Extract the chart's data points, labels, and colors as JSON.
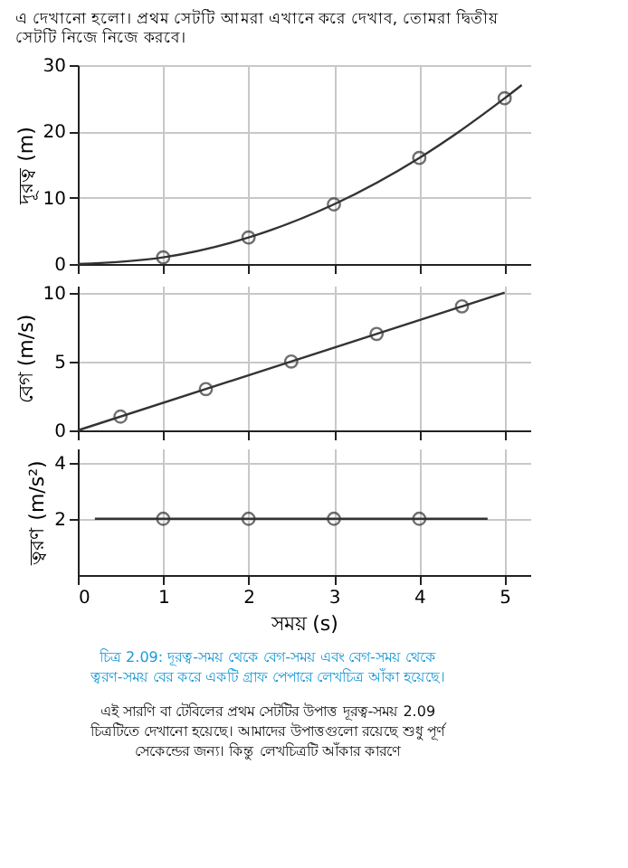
{
  "chart_data": [
    {
      "type": "line",
      "title": "এ দেখানো হলো। প্রথম সেটটি আমরা এখানে করে দেখাব, তোমরা দ্বিতীয় সেটটি নিজে নিজে করবে।",
      "ylabel": "দূরত্ব (m)",
      "xlim": [
        0,
        5.3
      ],
      "ylim": [
        0,
        30
      ],
      "xticks": [
        {
          "value": 0,
          "label": null
        },
        {
          "value": 1,
          "label": null
        },
        {
          "value": 2,
          "label": null
        },
        {
          "value": 3,
          "label": null
        },
        {
          "value": 4,
          "label": null
        },
        {
          "value": 5,
          "label": null
        }
      ],
      "yticks": [
        0,
        10,
        20,
        30
      ],
      "tick_labels": "y",
      "grid": true,
      "series": [
        {
          "color": "#333333",
          "line_style": "solid",
          "x": [
            0,
            1,
            2,
            3,
            4,
            5,
            5.2
          ],
          "values": [
            0,
            1,
            4,
            9,
            16,
            25,
            27
          ]
        },
        {
          "type": "scatter",
          "color": "#333333",
          "marker": "circle",
          "x": [
            1,
            2,
            3,
            4,
            5
          ],
          "values": [
            1,
            4,
            9,
            16,
            25
          ]
        }
      ]
    },
    {
      "type": "line",
      "ylabel": "বেগ (m/s)",
      "xlim": [
        0,
        5.3
      ],
      "ylim": [
        0,
        10.5
      ],
      "xticks": [
        {
          "value": 0,
          "label": null
        },
        {
          "value": 1,
          "label": null
        },
        {
          "value": 2,
          "label": null
        },
        {
          "value": 3,
          "label": null
        },
        {
          "value": 4,
          "label": null
        },
        {
          "value": 5,
          "label": null
        }
      ],
      "yticks": [
        0,
        5,
        10
      ],
      "tick_labels": "y",
      "grid": true,
      "series": [
        {
          "color": "#333333",
          "line_style": "solid",
          "x": [
            0,
            5
          ],
          "values": [
            0,
            10
          ]
        },
        {
          "type": "scatter",
          "color": "#333333",
          "marker": "circle",
          "x": [
            0.5,
            1.5,
            2.5,
            3.5,
            4.5
          ],
          "values": [
            1,
            3,
            5,
            7,
            9
          ]
        }
      ]
    },
    {
      "type": "line",
      "ylabel": "ত্বরণ (m/s²)",
      "xlabel": "সময় (s)",
      "xlim": [
        0,
        5.3
      ],
      "ylim": [
        0,
        4.5
      ],
      "xticks": [
        0,
        1,
        2,
        3,
        4,
        5
      ],
      "yticks": [
        2,
        4
      ],
      "grid": true,
      "series": [
        {
          "color": "#333333",
          "line_style": "solid",
          "x": [
            0.2,
            4.8
          ],
          "values": [
            2,
            2
          ]
        },
        {
          "type": "scatter",
          "color": "#333333",
          "marker": "circle",
          "x": [
            1,
            2,
            3,
            4
          ],
          "values": [
            2,
            2,
            2,
            2
          ]
        }
      ],
      "annotations": [
        "চিত্র 2.09: দূরত্ব-সময় থেকে বেগ-সময় এবং বেগ-সময় থেকে ত্বরণ-সময় বের করে একটি গ্রাফ পেপারে লেখচিত্র আঁকা হয়েছে।",
        "এই সারণি বা টেবিলের প্রথম সেটটির উপাত্ত দূরত্ব-সময় 2.09 চিত্রটিতে দেখানো হয়েছে। আমাদের উপাত্তগুলো রয়েছে শুধু পূর্ণ সেকেন্ডের জন্য। কিন্তু লেখচিত্রটি আঁকার কারণে"
      ]
    }
  ]
}
